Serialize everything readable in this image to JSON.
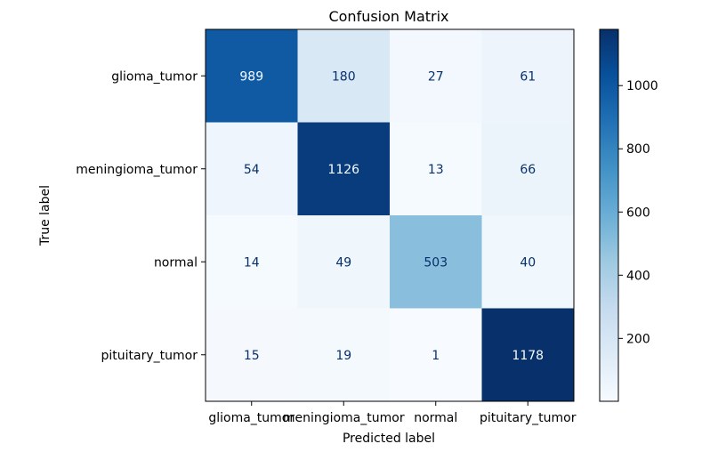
{
  "chart_data": {
    "type": "heatmap",
    "title": "Confusion Matrix",
    "xlabel": "Predicted label",
    "ylabel": "True label",
    "x_categories": [
      "glioma_tumor",
      "meningioma_tumor",
      "normal",
      "pituitary_tumor"
    ],
    "y_categories": [
      "glioma_tumor",
      "meningioma_tumor",
      "normal",
      "pituitary_tumor"
    ],
    "values": [
      [
        989,
        180,
        27,
        61
      ],
      [
        54,
        1126,
        13,
        66
      ],
      [
        14,
        49,
        503,
        40
      ],
      [
        15,
        19,
        1,
        1178
      ]
    ],
    "colormap": "Blues",
    "colorbar_ticks": [
      200,
      400,
      600,
      800,
      1000
    ],
    "colorbar_range": [
      1,
      1178
    ]
  },
  "colors": {
    "low": "#f7fbff",
    "high": "#08306b",
    "text_dark": "#08306b",
    "text_light": "#f7fbff"
  }
}
